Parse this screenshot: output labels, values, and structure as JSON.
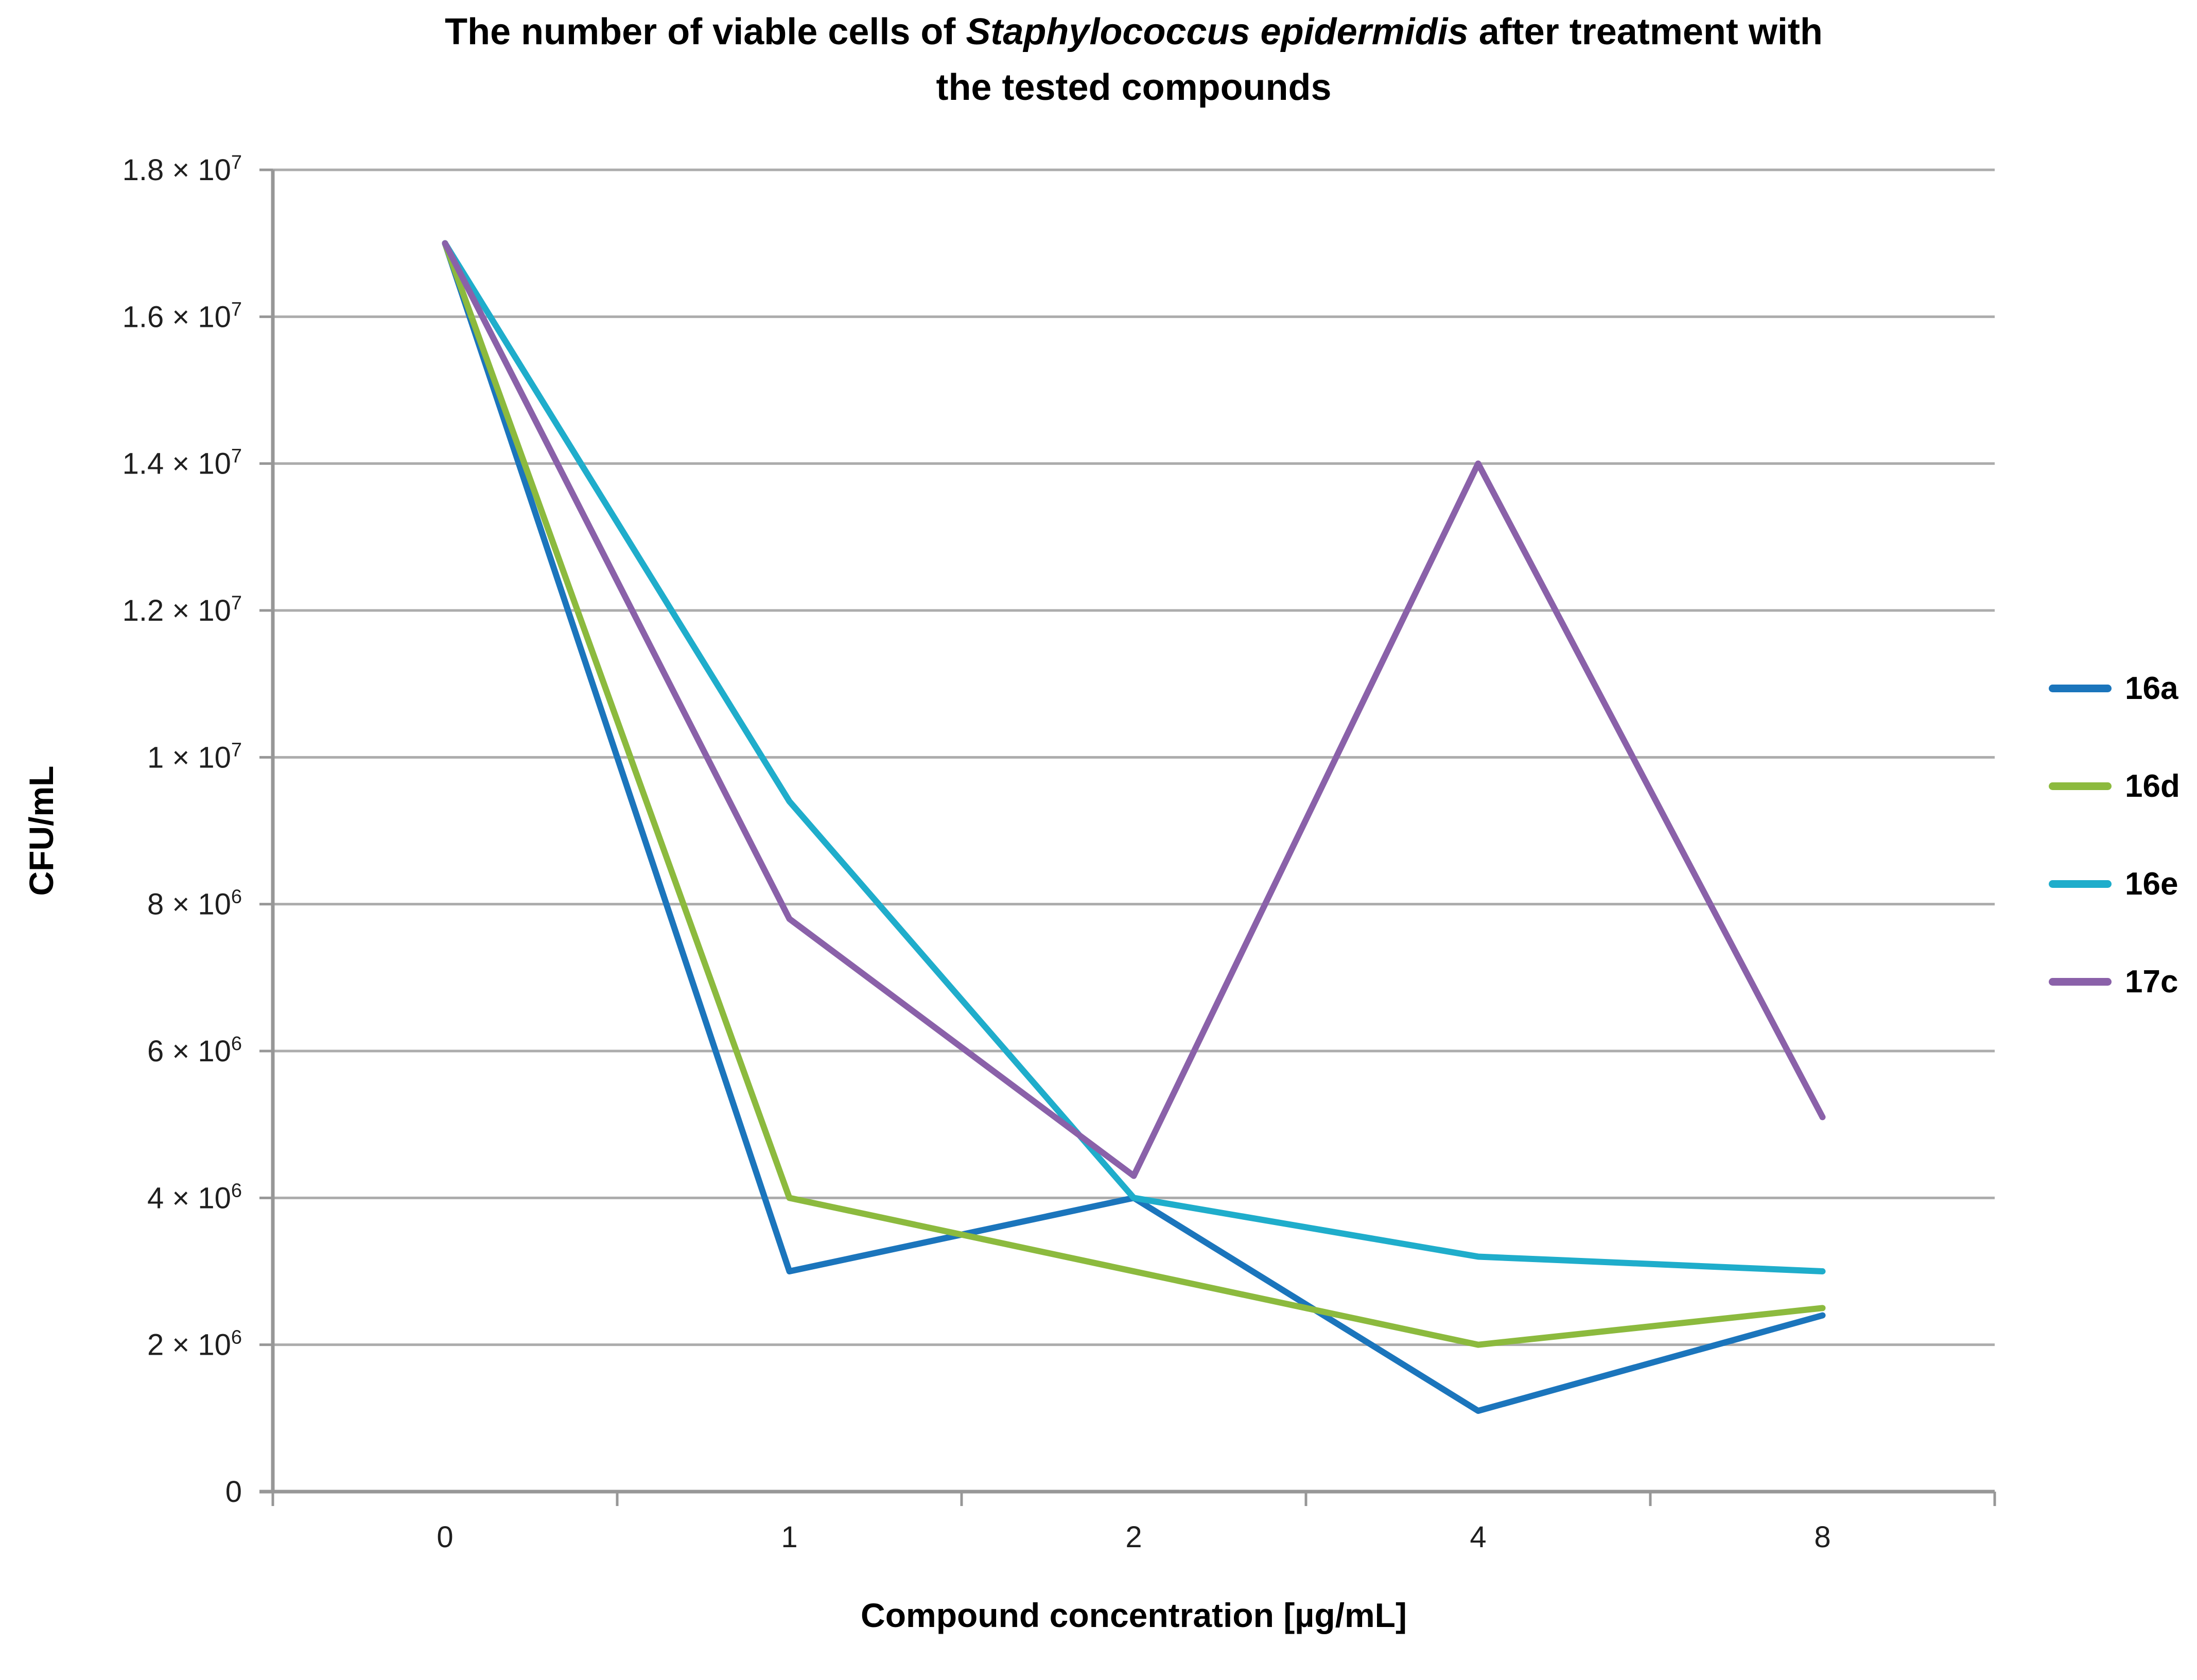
{
  "title": {
    "line1_prefix": "The number of viable cells of ",
    "line1_italic": "Staphylococcus epidermidis",
    "line1_suffix": " after treatment with",
    "line2": "the tested compounds"
  },
  "axes": {
    "y_title": "CFU/mL",
    "x_title": "Compound concentration [µg/mL]",
    "y_ticks": [
      {
        "value": 18000000,
        "base": "1.8 × 10",
        "sup": "7"
      },
      {
        "value": 16000000,
        "base": "1.6 × 10",
        "sup": "7"
      },
      {
        "value": 14000000,
        "base": "1.4 × 10",
        "sup": "7"
      },
      {
        "value": 12000000,
        "base": "1.2 × 10",
        "sup": "7"
      },
      {
        "value": 10000000,
        "base": "1 × 10",
        "sup": "7"
      },
      {
        "value": 8000000,
        "base": "8 × 10",
        "sup": "6"
      },
      {
        "value": 6000000,
        "base": "6 × 10",
        "sup": "6"
      },
      {
        "value": 4000000,
        "base": "4 × 10",
        "sup": "6"
      },
      {
        "value": 2000000,
        "base": "2 × 10",
        "sup": "6"
      },
      {
        "value": 0,
        "base": "0",
        "sup": ""
      }
    ],
    "x_ticks": [
      "0",
      "1",
      "2",
      "4",
      "8"
    ]
  },
  "legend": [
    {
      "label": "16a",
      "color": "#1b75bc"
    },
    {
      "label": "16d",
      "color": "#8cba3e"
    },
    {
      "label": "16e",
      "color": "#1fadcb"
    },
    {
      "label": "17c",
      "color": "#8a61a9"
    }
  ],
  "colors": {
    "gridline": "#acacac",
    "axis": "#979797",
    "text": "#1f1f1f"
  },
  "chart_data": {
    "type": "line",
    "title": "The number of viable cells of Staphylococcus epidermidis after treatment with the tested compounds",
    "xlabel": "Compound concentration [µg/mL]",
    "ylabel": "CFU/mL",
    "categories": [
      0,
      1,
      2,
      4,
      8
    ],
    "series": [
      {
        "name": "16a",
        "color": "#1b75bc",
        "values": [
          17000000,
          3000000,
          4000000,
          1100000,
          2400000
        ]
      },
      {
        "name": "16d",
        "color": "#8cba3e",
        "values": [
          17000000,
          4000000,
          3000000,
          2000000,
          2500000
        ]
      },
      {
        "name": "16e",
        "color": "#1fadcb",
        "values": [
          17000000,
          9400000,
          4000000,
          3200000,
          3000000
        ]
      },
      {
        "name": "17c",
        "color": "#8a61a9",
        "values": [
          17000000,
          7800000,
          4300000,
          14000000,
          5100000
        ]
      }
    ],
    "ylim": [
      0,
      18000000
    ],
    "y_tick_step": 2000000,
    "grid": true,
    "legend_position": "right"
  }
}
